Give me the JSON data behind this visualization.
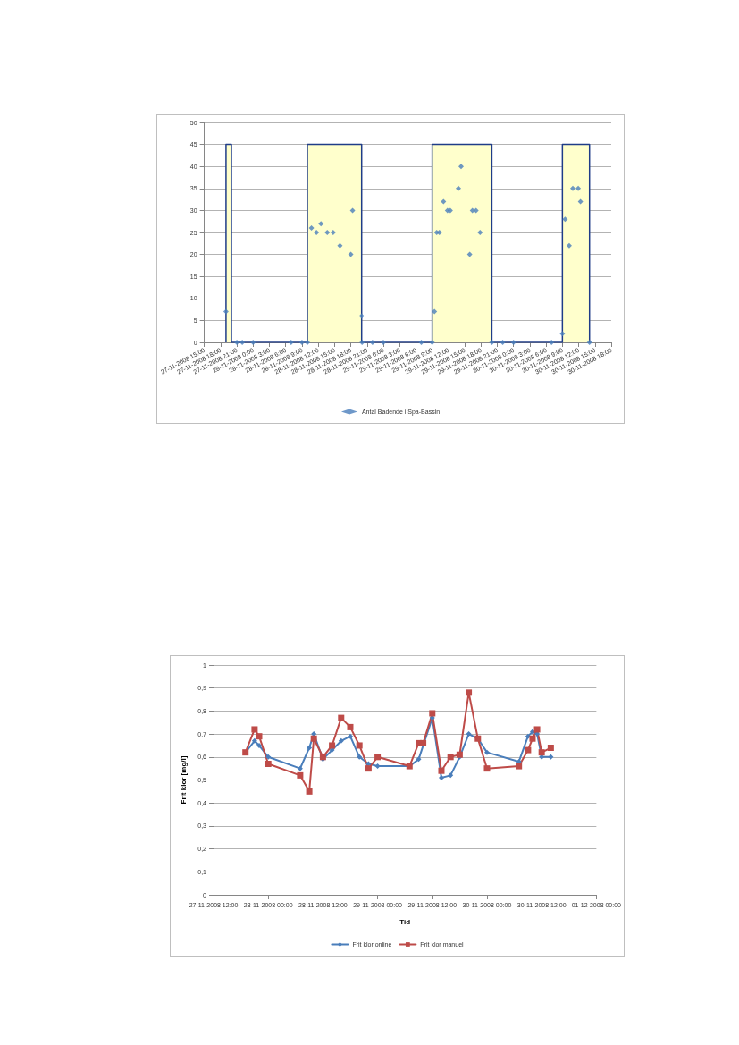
{
  "chart_data": [
    {
      "type": "scatter",
      "xlim": [
        "2008-11-27T15:00",
        "2008-11-30T18:00"
      ],
      "xticks": [
        {
          "value": "2008-11-27T15:00",
          "label": "27-11-2008 15:00"
        },
        {
          "value": "2008-11-27T18:00",
          "label": "27-11-2008 18:00"
        },
        {
          "value": "2008-11-27T21:00",
          "label": "27-11-2008 21:00"
        },
        {
          "value": "2008-11-28T00:00",
          "label": "28-11-2008 0:00"
        },
        {
          "value": "2008-11-28T03:00",
          "label": "28-11-2008 3:00"
        },
        {
          "value": "2008-11-28T06:00",
          "label": "28-11-2008 6:00"
        },
        {
          "value": "2008-11-28T09:00",
          "label": "28-11-2008 9:00"
        },
        {
          "value": "2008-11-28T12:00",
          "label": "28-11-2008 12:00"
        },
        {
          "value": "2008-11-28T15:00",
          "label": "28-11-2008 15:00"
        },
        {
          "value": "2008-11-28T18:00",
          "label": "28-11-2008 18:00"
        },
        {
          "value": "2008-11-28T21:00",
          "label": "28-11-2008 21:00"
        },
        {
          "value": "2008-11-29T00:00",
          "label": "29-11-2008 0:00"
        },
        {
          "value": "2008-11-29T03:00",
          "label": "29-11-2008 3:00"
        },
        {
          "value": "2008-11-29T06:00",
          "label": "29-11-2008 6:00"
        },
        {
          "value": "2008-11-29T09:00",
          "label": "29-11-2008 9:00"
        },
        {
          "value": "2008-11-29T12:00",
          "label": "29-11-2008 12:00"
        },
        {
          "value": "2008-11-29T15:00",
          "label": "29-11-2008 15:00"
        },
        {
          "value": "2008-11-29T18:00",
          "label": "29-11-2008 18:00"
        },
        {
          "value": "2008-11-29T21:00",
          "label": "29-11-2008 21:00"
        },
        {
          "value": "2008-11-30T00:00",
          "label": "30-11-2008 0:00"
        },
        {
          "value": "2008-11-30T03:00",
          "label": "30-11-2008 3:00"
        },
        {
          "value": "2008-11-30T06:00",
          "label": "30-11-2008 6:00"
        },
        {
          "value": "2008-11-30T09:00",
          "label": "30-11-2008 9:00"
        },
        {
          "value": "2008-11-30T12:00",
          "label": "30-11-2008 12:00"
        },
        {
          "value": "2008-11-30T15:00",
          "label": "30-11-2008 15:00"
        },
        {
          "value": "2008-11-30T18:00",
          "label": "30-11-2008 18:00"
        }
      ],
      "ylim": [
        0,
        50
      ],
      "yticks": [
        0,
        5,
        10,
        15,
        20,
        25,
        30,
        35,
        40,
        45,
        50
      ],
      "grid": "y",
      "legend": "bottom",
      "series": [
        {
          "type": "area",
          "color": "#ffffcc",
          "marker": "none",
          "line_style": "solid",
          "x": [
            "2008-11-27T19:00",
            "2008-11-27T19:00",
            "2008-11-27T20:00",
            "2008-11-27T20:00",
            "2008-11-28T10:00",
            "2008-11-28T10:00",
            "2008-11-28T20:00",
            "2008-11-28T20:00",
            "2008-11-29T09:00",
            "2008-11-29T09:00",
            "2008-11-29T20:00",
            "2008-11-29T20:00",
            "2008-11-30T09:00",
            "2008-11-30T09:00",
            "2008-11-30T14:00",
            "2008-11-30T14:00"
          ],
          "values": [
            0,
            45,
            45,
            0,
            0,
            45,
            45,
            0,
            0,
            45,
            45,
            0,
            0,
            45,
            45,
            0
          ]
        },
        {
          "type": "scatter",
          "name": "Antal Badende i Spa-Bassin",
          "color": "#4a7ebb",
          "marker": "diamond",
          "x": [
            "2008-11-27T19:00",
            "2008-11-27T21:00",
            "2008-11-27T22:00",
            "2008-11-28T00:00",
            "2008-11-28T07:00",
            "2008-11-28T09:00",
            "2008-11-28T10:00",
            "2008-11-28T10:45",
            "2008-11-28T11:40",
            "2008-11-28T12:30",
            "2008-11-28T13:40",
            "2008-11-28T14:45",
            "2008-11-28T16:00",
            "2008-11-28T18:00",
            "2008-11-28T18:20",
            "2008-11-28T20:00",
            "2008-11-28T20:05",
            "2008-11-28T22:00",
            "2008-11-29T00:00",
            "2008-11-29T07:00",
            "2008-11-29T09:00",
            "2008-11-29T09:25",
            "2008-11-29T09:50",
            "2008-11-29T10:20",
            "2008-11-29T11:05",
            "2008-11-29T11:50",
            "2008-11-29T12:20",
            "2008-11-29T13:50",
            "2008-11-29T14:20",
            "2008-11-29T15:55",
            "2008-11-29T16:25",
            "2008-11-29T17:05",
            "2008-11-29T17:50",
            "2008-11-29T20:00",
            "2008-11-29T22:00",
            "2008-11-30T00:00",
            "2008-11-30T07:00",
            "2008-11-30T09:00",
            "2008-11-30T09:30",
            "2008-11-30T10:15",
            "2008-11-30T10:55",
            "2008-11-30T11:55",
            "2008-11-30T12:20",
            "2008-11-30T14:00"
          ],
          "values": [
            7,
            0,
            0,
            0,
            0,
            0,
            0,
            26,
            25,
            27,
            25,
            25,
            22,
            20,
            30,
            6,
            0,
            0,
            0,
            0,
            0,
            7,
            25,
            25,
            32,
            30,
            30,
            35,
            40,
            20,
            30,
            30,
            25,
            0,
            0,
            0,
            0,
            2,
            28,
            22,
            35,
            35,
            32,
            0
          ]
        }
      ]
    },
    {
      "type": "line",
      "xlabel": "Tid",
      "ylabel": "Frit klor [mg/l]",
      "xlim": [
        "2008-11-27T12:00",
        "2008-12-01T00:00"
      ],
      "xticks": [
        {
          "value": "2008-11-27T12:00",
          "label": "27-11-2008 12:00"
        },
        {
          "value": "2008-11-28T00:00",
          "label": "28-11-2008 00:00"
        },
        {
          "value": "2008-11-28T12:00",
          "label": "28-11-2008 12:00"
        },
        {
          "value": "2008-11-29T00:00",
          "label": "29-11-2008 00:00"
        },
        {
          "value": "2008-11-29T12:00",
          "label": "29-11-2008 12:00"
        },
        {
          "value": "2008-11-30T00:00",
          "label": "30-11-2008 00:00"
        },
        {
          "value": "2008-11-30T12:00",
          "label": "30-11-2008 12:00"
        },
        {
          "value": "2008-12-01T00:00",
          "label": "01-12-2008 00:00"
        }
      ],
      "ylim": [
        0,
        1
      ],
      "yticks": [
        0,
        {
          "value": 0.1,
          "label": "0,1"
        },
        {
          "value": 0.2,
          "label": "0,2"
        },
        {
          "value": 0.3,
          "label": "0,3"
        },
        {
          "value": 0.4,
          "label": "0,4"
        },
        {
          "value": 0.5,
          "label": "0,5"
        },
        {
          "value": 0.6,
          "label": "0,6"
        },
        {
          "value": 0.7,
          "label": "0,7"
        },
        {
          "value": 0.8,
          "label": "0,8"
        },
        {
          "value": 0.9,
          "label": "0,9"
        },
        1
      ],
      "grid": "y",
      "legend": "bottom",
      "line_style": "solid",
      "series": [
        {
          "name": "Frit klor online",
          "color": "#4a7ebb",
          "marker": "diamond",
          "x": [
            "2008-11-27T19:00",
            "2008-11-27T21:00",
            "2008-11-27T22:00",
            "2008-11-28T00:00",
            "2008-11-28T07:00",
            "2008-11-28T09:00",
            "2008-11-28T10:00",
            "2008-11-28T12:00",
            "2008-11-28T14:00",
            "2008-11-28T16:00",
            "2008-11-28T18:00",
            "2008-11-28T20:00",
            "2008-11-28T22:00",
            "2008-11-29T00:00",
            "2008-11-29T07:00",
            "2008-11-29T09:00",
            "2008-11-29T12:00",
            "2008-11-29T14:00",
            "2008-11-29T16:00",
            "2008-11-29T18:00",
            "2008-11-29T20:00",
            "2008-11-29T22:00",
            "2008-11-30T00:00",
            "2008-11-30T07:00",
            "2008-11-30T09:00",
            "2008-11-30T10:00",
            "2008-11-30T11:00",
            "2008-11-30T12:00",
            "2008-11-30T14:00"
          ],
          "values": [
            0.62,
            0.67,
            0.65,
            0.6,
            0.55,
            0.64,
            0.7,
            0.59,
            0.63,
            0.67,
            0.69,
            0.6,
            0.57,
            0.56,
            0.56,
            0.59,
            0.77,
            0.51,
            0.52,
            0.6,
            0.7,
            0.68,
            0.62,
            0.58,
            0.69,
            0.71,
            0.7,
            0.6,
            0.6
          ]
        },
        {
          "name": "Frit klor manuel",
          "color": "#be4b48",
          "marker": "square",
          "x": [
            "2008-11-27T19:00",
            "2008-11-27T21:00",
            "2008-11-27T22:00",
            "2008-11-28T00:00",
            "2008-11-28T07:00",
            "2008-11-28T09:00",
            "2008-11-28T10:00",
            "2008-11-28T12:00",
            "2008-11-28T14:00",
            "2008-11-28T16:00",
            "2008-11-28T18:00",
            "2008-11-28T20:00",
            "2008-11-28T22:00",
            "2008-11-29T00:00",
            "2008-11-29T07:00",
            "2008-11-29T09:00",
            "2008-11-29T10:00",
            "2008-11-29T12:00",
            "2008-11-29T14:00",
            "2008-11-29T16:00",
            "2008-11-29T18:00",
            "2008-11-29T20:00",
            "2008-11-29T22:00",
            "2008-11-30T00:00",
            "2008-11-30T07:00",
            "2008-11-30T09:00",
            "2008-11-30T10:00",
            "2008-11-30T11:00",
            "2008-11-30T12:00",
            "2008-11-30T14:00"
          ],
          "values": [
            0.62,
            0.72,
            0.69,
            0.57,
            0.52,
            0.45,
            0.68,
            0.6,
            0.65,
            0.77,
            0.73,
            0.65,
            0.55,
            0.6,
            0.56,
            0.66,
            0.66,
            0.79,
            0.54,
            0.6,
            0.61,
            0.88,
            0.68,
            0.55,
            0.56,
            0.63,
            0.68,
            0.72,
            0.62,
            0.64
          ]
        }
      ]
    }
  ]
}
